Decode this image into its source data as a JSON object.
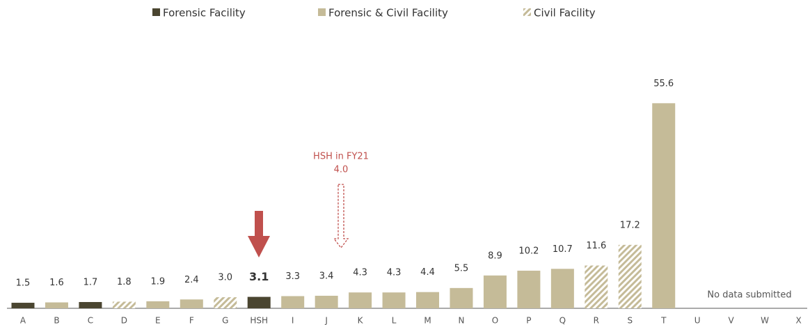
{
  "chart_data": {
    "type": "bar",
    "categories": [
      "A",
      "B",
      "C",
      "D",
      "E",
      "F",
      "G",
      "HSH",
      "I",
      "J",
      "K",
      "L",
      "M",
      "N",
      "O",
      "P",
      "Q",
      "R",
      "S",
      "T",
      "U",
      "V",
      "W",
      "X"
    ],
    "series": [
      {
        "name": "Forensic Facility",
        "color": "#4a4530",
        "pattern": "solid",
        "values": [
          1.5,
          null,
          1.7,
          null,
          null,
          null,
          null,
          3.1,
          null,
          null,
          null,
          null,
          null,
          null,
          null,
          null,
          null,
          null,
          null,
          null,
          null,
          null,
          null,
          null
        ],
        "value_labels": [
          "1.5",
          null,
          "1.7",
          null,
          null,
          null,
          null,
          "3.1",
          null,
          null,
          null,
          null,
          null,
          null,
          null,
          null,
          null,
          null,
          null,
          null,
          null,
          null,
          null,
          null
        ]
      },
      {
        "name": "Forensic & Civil Facility",
        "color": "#c5bb98",
        "pattern": "solid",
        "values": [
          null,
          1.6,
          null,
          null,
          1.9,
          2.4,
          null,
          null,
          3.3,
          3.4,
          4.3,
          4.3,
          4.4,
          5.5,
          8.9,
          10.2,
          10.7,
          null,
          null,
          55.6,
          null,
          null,
          null,
          null
        ],
        "value_labels": [
          null,
          "1.6",
          null,
          null,
          "1.9",
          "2.4",
          null,
          null,
          "3.3",
          "3.4",
          "4.3",
          "4.3",
          "4.4",
          "5.5",
          "8.9",
          "10.2",
          "10.7",
          null,
          null,
          "55.6",
          null,
          null,
          null,
          null
        ]
      },
      {
        "name": "Civil Facility",
        "color": "#c5bb98",
        "pattern": "hatch",
        "values": [
          null,
          null,
          null,
          1.8,
          null,
          null,
          3.0,
          null,
          null,
          null,
          null,
          null,
          null,
          null,
          null,
          null,
          null,
          11.6,
          17.2,
          null,
          null,
          null,
          null,
          null
        ],
        "value_labels": [
          null,
          null,
          null,
          "1.8",
          null,
          null,
          "3.0",
          null,
          null,
          null,
          null,
          null,
          null,
          null,
          null,
          null,
          null,
          "11.6",
          "17.2",
          null,
          null,
          null,
          null,
          null
        ]
      }
    ],
    "highlight": "HSH",
    "ylim": [
      0,
      60
    ],
    "annotation": {
      "text": "HSH in FY21",
      "value": "4.0"
    },
    "note": "No data submitted"
  }
}
